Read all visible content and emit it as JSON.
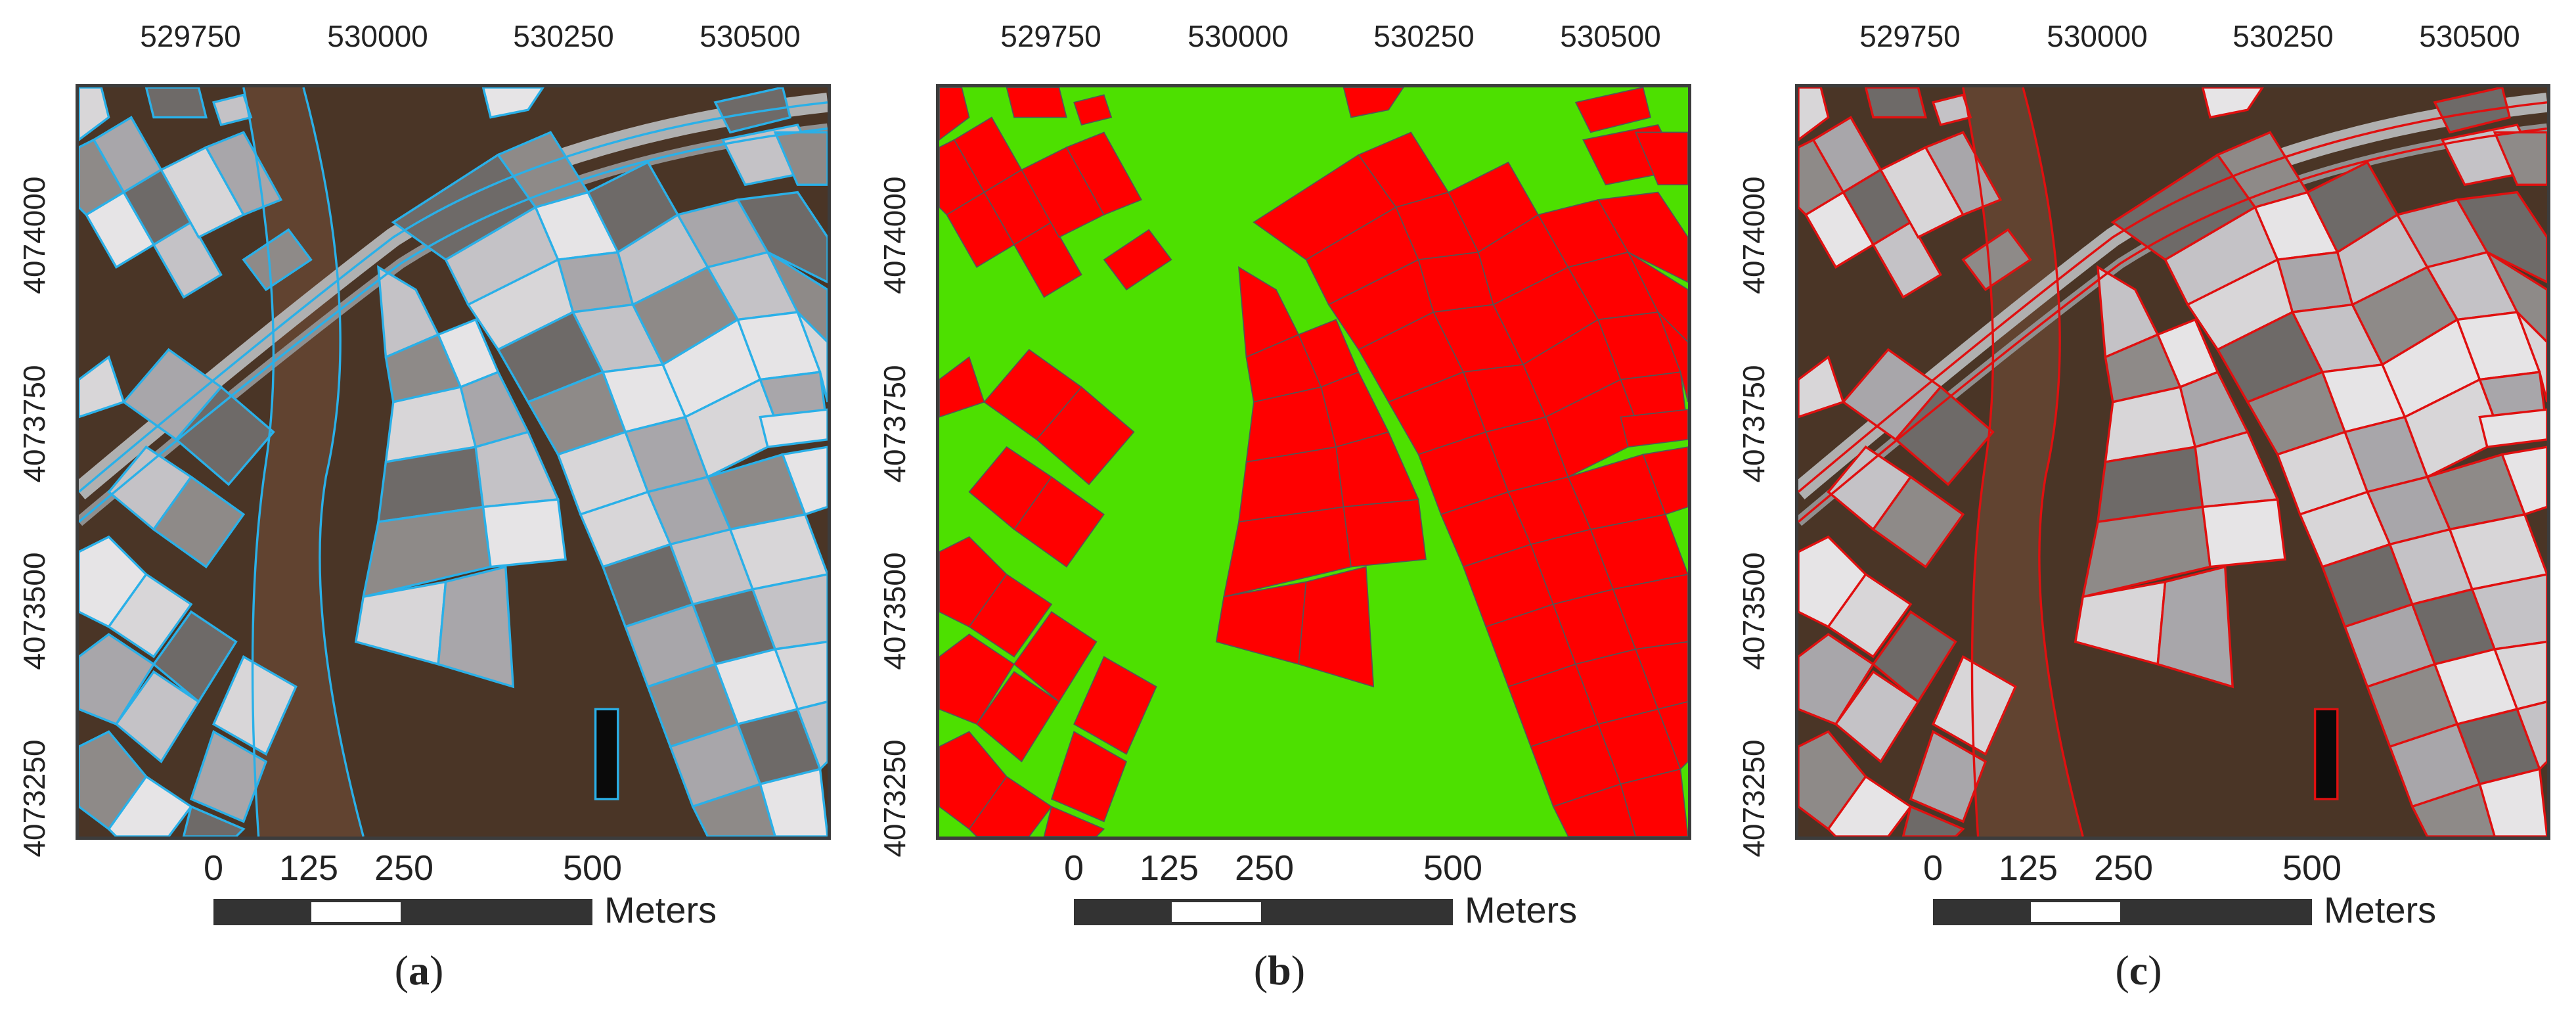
{
  "x_ticks": [
    "529750",
    "530000",
    "530250",
    "530500"
  ],
  "y_ticks": [
    "4074000",
    "4073750",
    "4073500",
    "4073250"
  ],
  "scale": {
    "labels": [
      "0",
      "125",
      "250",
      "500"
    ],
    "units": "Meters"
  },
  "panels": [
    {
      "id": "a",
      "caption_open": "(",
      "caption_letter": "a",
      "caption_close": ")",
      "style": "satellite-cyan-segments",
      "outline_color": "#2ab0e8"
    },
    {
      "id": "b",
      "caption_open": "(",
      "caption_letter": "b",
      "caption_close": ")",
      "style": "classification",
      "fill_greenhouse": "#ff0000",
      "fill_background": "#4de000"
    },
    {
      "id": "c",
      "caption_open": "(",
      "caption_letter": "c",
      "caption_close": ")",
      "style": "satellite-red-segments",
      "outline_color": "#e01010"
    }
  ],
  "colors": {
    "soil": "#4a3526",
    "soil_light": "#6b4a34",
    "greenhouse_bright": "#d8d6d8",
    "greenhouse_mid": "#a8a6aa",
    "greenhouse_dark": "#6e6a68",
    "road": "#b0b0b0",
    "frame": "#3c3c3c"
  }
}
